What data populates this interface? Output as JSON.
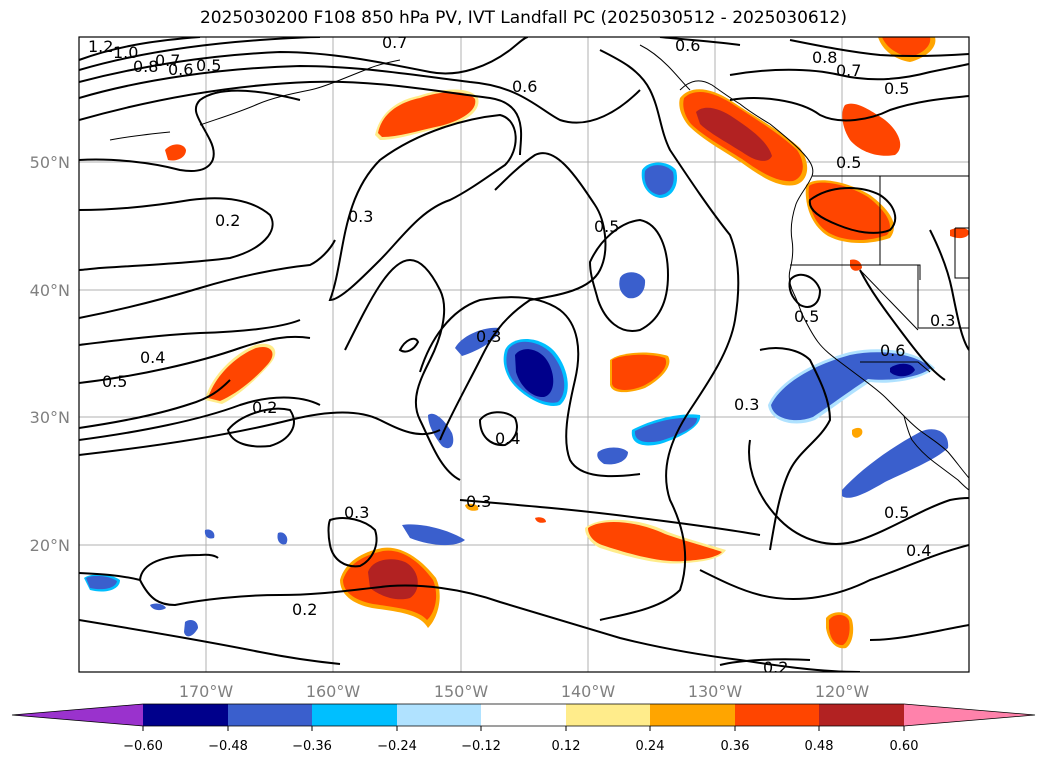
{
  "title": "2025030200 F108 850 hPa PV, IVT Landfall PC (2025030512 - 2025030612)",
  "lon_ticks": [
    "170°W",
    "160°W",
    "150°W",
    "140°W",
    "130°W",
    "120°W"
  ],
  "lat_ticks": [
    "50°N",
    "40°N",
    "30°N",
    "20°N"
  ],
  "colorbar": {
    "colors": [
      "#9a32cd",
      "#00008b",
      "#3a5fcd",
      "#00bfff",
      "#b0e2ff",
      "#ffffff",
      "#ffec8b",
      "#ffa500",
      "#ff4500",
      "#b22222",
      "#ff82ab"
    ],
    "labels": [
      "−0.60",
      "−0.48",
      "−0.36",
      "−0.24",
      "−0.12",
      "0.12",
      "0.24",
      "0.36",
      "0.48",
      "0.60"
    ]
  },
  "contour_labels": [
    "1.2",
    "1.0",
    "0.8",
    "0.7",
    "0.6",
    "0.5",
    "0.7",
    "0.6",
    "0.6",
    "0.8",
    "0.7",
    "0.5",
    "0.2",
    "0.3",
    "0.5",
    "0.5",
    "0.4",
    "0.5",
    "0.2",
    "0.3",
    "0.4",
    "0.3",
    "0.3",
    "0.3",
    "0.2",
    "0.2",
    "0.5",
    "0.4",
    "0.6",
    "0.5",
    "0.3"
  ]
}
